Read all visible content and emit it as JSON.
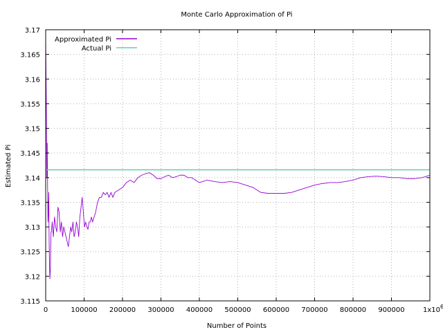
{
  "chart_data": {
    "type": "line",
    "title": "Monte Carlo Approximation of Pi",
    "xlabel": "Number of Points",
    "ylabel": "Estimated Pi",
    "xlim": [
      0,
      1000000
    ],
    "ylim": [
      3.115,
      3.17
    ],
    "x_ticks": [
      "0",
      "100000",
      "200000",
      "300000",
      "400000",
      "500000",
      "600000",
      "700000",
      "800000",
      "900000"
    ],
    "x_tick_values": [
      0,
      100000,
      200000,
      300000,
      400000,
      500000,
      600000,
      700000,
      800000,
      900000
    ],
    "x_last_tick": {
      "value": 1000000,
      "mantissa": "1x10",
      "exponent": "6"
    },
    "y_ticks": [
      "3.115",
      "3.12",
      "3.125",
      "3.13",
      "3.135",
      "3.14",
      "3.145",
      "3.15",
      "3.155",
      "3.16",
      "3.165",
      "3.17"
    ],
    "y_tick_values": [
      3.115,
      3.12,
      3.125,
      3.13,
      3.135,
      3.14,
      3.145,
      3.15,
      3.155,
      3.16,
      3.165,
      3.17
    ],
    "grid": true,
    "legend_position": "top-left",
    "series": [
      {
        "name": "Approximated Pi",
        "color": "#9400d3",
        "x": [
          0,
          1000,
          2000,
          3000,
          4000,
          5000,
          6000,
          7000,
          8000,
          9000,
          10000,
          11000,
          12000,
          13000,
          14000,
          15000,
          17000,
          20000,
          23000,
          26000,
          29000,
          32000,
          35000,
          38000,
          41000,
          44000,
          47000,
          50000,
          53000,
          56000,
          59000,
          62000,
          65000,
          68000,
          71000,
          74000,
          77000,
          80000,
          83000,
          86000,
          89000,
          92000,
          95000,
          98000,
          101000,
          104000,
          107000,
          110000,
          113000,
          116000,
          119000,
          122000,
          126000,
          130000,
          135000,
          140000,
          145000,
          150000,
          155000,
          160000,
          165000,
          170000,
          175000,
          180000,
          190000,
          200000,
          210000,
          220000,
          230000,
          240000,
          250000,
          260000,
          270000,
          280000,
          290000,
          300000,
          310000,
          320000,
          330000,
          340000,
          350000,
          360000,
          370000,
          380000,
          390000,
          400000,
          420000,
          440000,
          460000,
          480000,
          500000,
          520000,
          540000,
          560000,
          580000,
          600000,
          620000,
          640000,
          660000,
          680000,
          700000,
          720000,
          740000,
          760000,
          780000,
          800000,
          820000,
          840000,
          860000,
          880000,
          900000,
          920000,
          940000,
          960000,
          980000,
          1000000
        ],
        "values": [
          3.168,
          3.16,
          3.152,
          3.14,
          3.147,
          3.138,
          3.131,
          3.133,
          3.137,
          3.127,
          3.122,
          3.1195,
          3.121,
          3.126,
          3.129,
          3.129,
          3.131,
          3.128,
          3.132,
          3.13,
          3.129,
          3.134,
          3.133,
          3.129,
          3.131,
          3.128,
          3.13,
          3.129,
          3.128,
          3.127,
          3.126,
          3.128,
          3.13,
          3.129,
          3.131,
          3.128,
          3.129,
          3.131,
          3.13,
          3.128,
          3.132,
          3.134,
          3.136,
          3.133,
          3.13,
          3.131,
          3.13,
          3.1295,
          3.131,
          3.131,
          3.132,
          3.131,
          3.132,
          3.133,
          3.135,
          3.136,
          3.136,
          3.137,
          3.1365,
          3.137,
          3.136,
          3.137,
          3.136,
          3.137,
          3.1375,
          3.138,
          3.139,
          3.1395,
          3.139,
          3.14,
          3.1405,
          3.1408,
          3.141,
          3.1405,
          3.1398,
          3.1398,
          3.1402,
          3.1405,
          3.14,
          3.1402,
          3.1405,
          3.1405,
          3.14,
          3.14,
          3.1395,
          3.139,
          3.1395,
          3.1392,
          3.139,
          3.1392,
          3.139,
          3.1385,
          3.138,
          3.137,
          3.1368,
          3.1368,
          3.1368,
          3.137,
          3.1375,
          3.138,
          3.1385,
          3.1388,
          3.139,
          3.139,
          3.1392,
          3.1395,
          3.14,
          3.1402,
          3.1403,
          3.1402,
          3.14,
          3.14,
          3.1398,
          3.1398,
          3.14,
          3.1405
        ]
      },
      {
        "name": "Actual Pi",
        "color": "#66cdaa",
        "x": [
          0,
          1000000
        ],
        "values": [
          3.14159,
          3.14159
        ]
      }
    ]
  }
}
